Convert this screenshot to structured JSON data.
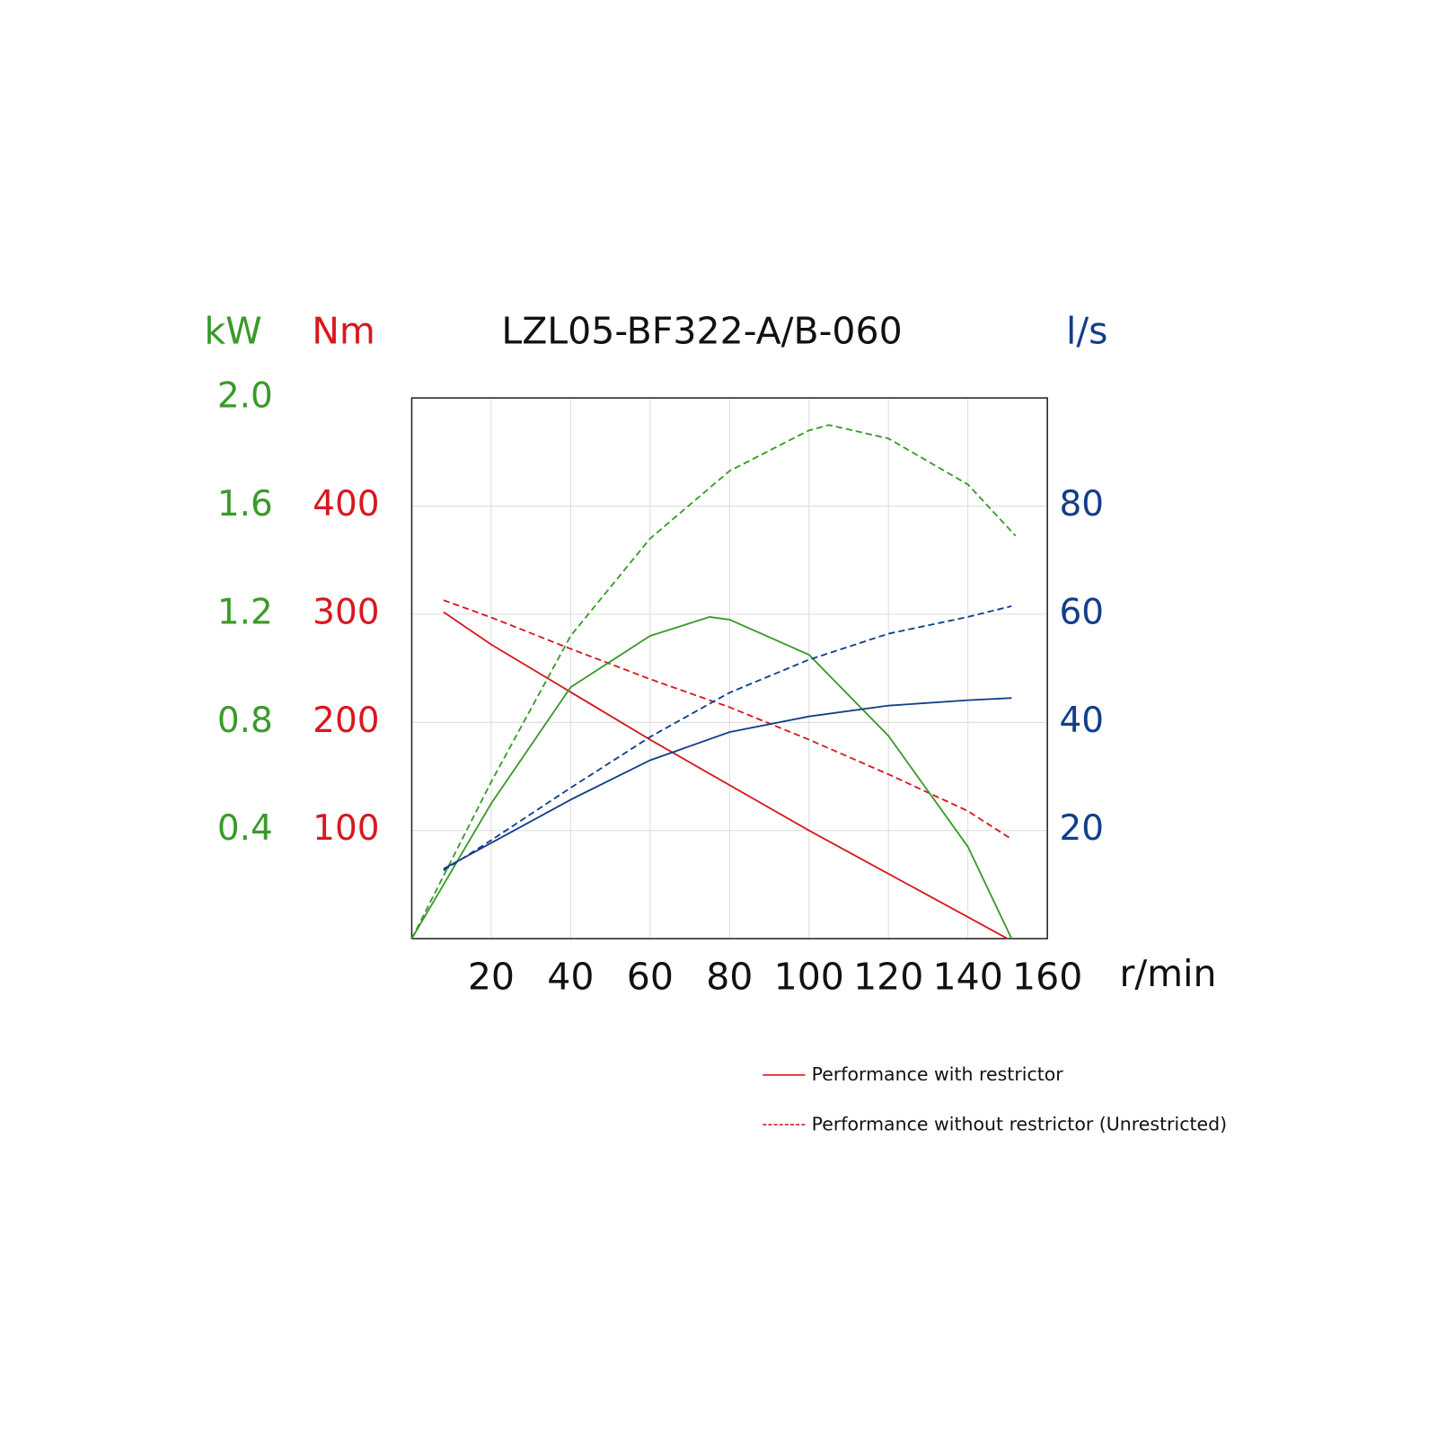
{
  "chart_data": {
    "type": "line",
    "title": "LZL05-BF322-A/B-060",
    "xlabel": "r/min",
    "xlim": [
      0,
      160
    ],
    "xticks": [
      20,
      40,
      60,
      80,
      100,
      120,
      140,
      160
    ],
    "ylabel": "Nm",
    "ycolor": "#d7191f",
    "ylim": [
      0,
      500
    ],
    "yticks": [
      100,
      200,
      300,
      400
    ],
    "y2label": "l/s",
    "y2color": "#123e8a",
    "y2lim": [
      0,
      100
    ],
    "y2ticks": [
      20,
      40,
      60,
      80
    ],
    "y3label": "kW",
    "y3color": "#3a9a2a",
    "y3lim": [
      0,
      2.0
    ],
    "y3ticks": [
      0.4,
      0.8,
      1.2,
      1.6,
      {
        "value": 2.0,
        "label": "2.0"
      }
    ],
    "grid": true,
    "series": [
      {
        "axis": "y",
        "color": "#d7191f",
        "dashed": false,
        "x": [
          8,
          20,
          40,
          60,
          80,
          100,
          120,
          140,
          150
        ],
        "values": [
          302,
          272,
          228,
          184,
          142,
          100,
          60,
          20,
          0
        ]
      },
      {
        "axis": "y",
        "color": "#d7191f",
        "dashed": true,
        "x": [
          8,
          20,
          40,
          60,
          80,
          100,
          120,
          140,
          151
        ],
        "values": [
          313,
          297,
          268,
          240,
          214,
          184,
          152,
          118,
          92
        ]
      },
      {
        "axis": "y3",
        "color": "#3a9a2a",
        "dashed": false,
        "x": [
          0,
          20,
          40,
          60,
          75,
          80,
          100,
          120,
          140,
          151
        ],
        "values": [
          0,
          0.5,
          0.93,
          1.12,
          1.19,
          1.18,
          1.05,
          0.75,
          0.34,
          0
        ]
      },
      {
        "axis": "y3",
        "color": "#3a9a2a",
        "dashed": true,
        "x": [
          0,
          20,
          40,
          60,
          80,
          100,
          105,
          120,
          140,
          152
        ],
        "values": [
          0,
          0.58,
          1.12,
          1.48,
          1.73,
          1.88,
          1.9,
          1.85,
          1.68,
          1.49
        ]
      },
      {
        "axis": "y2",
        "color": "#123e8a",
        "dashed": false,
        "x": [
          8,
          20,
          40,
          60,
          80,
          100,
          120,
          140,
          151
        ],
        "values": [
          12.9,
          17.7,
          25.7,
          33,
          38.2,
          41.1,
          43.1,
          44.1,
          44.5
        ]
      },
      {
        "axis": "y2",
        "color": "#123e8a",
        "dashed": true,
        "x": [
          8,
          20,
          40,
          60,
          80,
          100,
          120,
          140,
          151
        ],
        "values": [
          12.6,
          18.2,
          27.9,
          37.3,
          45.5,
          51.6,
          56.4,
          59.5,
          61.5
        ]
      }
    ],
    "legend": [
      {
        "label": "Performance with restrictor",
        "color": "#d7191f",
        "dashed": false
      },
      {
        "label": "Performance without restrictor (Unrestricted)",
        "color": "#d7191f",
        "dashed": true
      }
    ]
  }
}
